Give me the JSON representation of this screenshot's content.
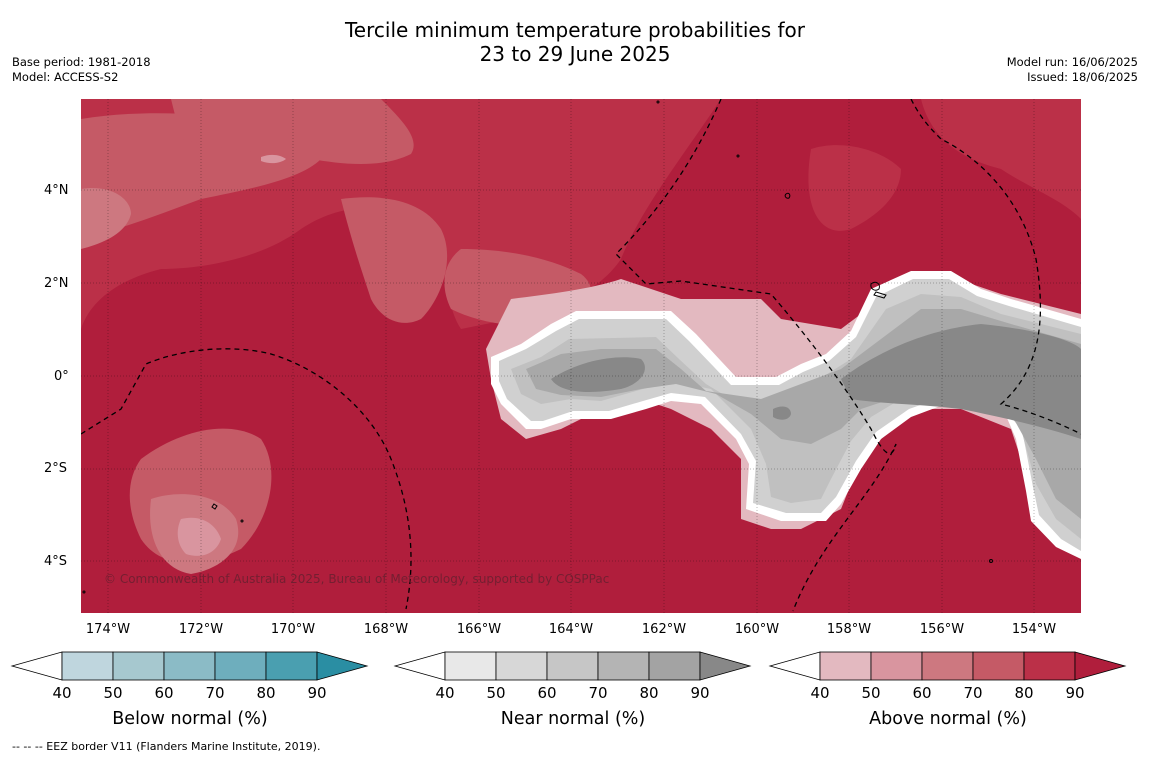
{
  "title_line1": "Tercile minimum temperature probabilities for",
  "title_line2": "23 to 29 June 2025",
  "meta_left": {
    "base_period": "Base period: 1981-2018",
    "model": "Model: ACCESS-S2"
  },
  "meta_right": {
    "model_run": "Model run: 16/06/2025",
    "issued": "Issued: 18/06/2025"
  },
  "lat_labels": [
    "4°N",
    "2°N",
    "0°",
    "2°S",
    "4°S"
  ],
  "lon_labels": [
    "174°W",
    "172°W",
    "170°W",
    "168°W",
    "166°W",
    "164°W",
    "162°W",
    "160°W",
    "158°W",
    "156°W",
    "154°W"
  ],
  "copyright": "© Commonwealth of Australia 2025, Bureau of Meteorology, supported by COSPPac",
  "legends": [
    {
      "title": "Below normal (%)",
      "ticks": [
        "40",
        "50",
        "60",
        "70",
        "80",
        "90"
      ],
      "colors": [
        "#bfd6de",
        "#a6c8cf",
        "#8bbbc6",
        "#6eaebd",
        "#4a9fb0",
        "#2a8ea3"
      ]
    },
    {
      "title": "Near normal (%)",
      "ticks": [
        "40",
        "50",
        "60",
        "70",
        "80",
        "90"
      ],
      "colors": [
        "#e8e8e8",
        "#d7d7d7",
        "#c6c6c6",
        "#b4b4b4",
        "#a3a3a3",
        "#888888"
      ]
    },
    {
      "title": "Above normal (%)",
      "ticks": [
        "40",
        "50",
        "60",
        "70",
        "80",
        "90"
      ],
      "colors": [
        "#e3b9c0",
        "#d9959f",
        "#cd7880",
        "#c55a66",
        "#bb3048",
        "#b01e3c"
      ]
    }
  ],
  "footnote": "-- -- -- EEZ border V11 (Flanders Marine Institute, 2019).",
  "map_colors": {
    "above_40": "#e3b9c0",
    "above_50": "#d9959f",
    "above_60": "#cd7880",
    "above_70": "#c55a66",
    "above_80": "#bb3048",
    "above_90": "#b01e3c",
    "near_50": "#d0d0d0",
    "near_60": "#c0c0c0",
    "near_70": "#a8a8a8",
    "near_80": "#888888"
  }
}
